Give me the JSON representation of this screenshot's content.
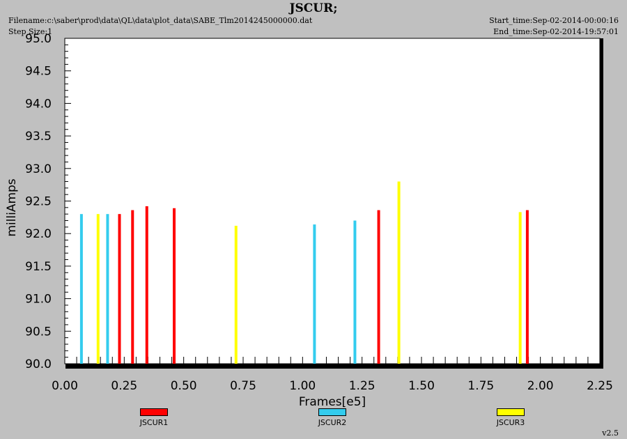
{
  "header": {
    "title": "JSCUR;",
    "filename": "Filename:c:\\saber\\prod\\data\\QL\\data\\plot_data\\SABE_Tlm2014245000000.dat",
    "step_size": "Step Size:1",
    "start_time": "Start_time:Sep-02-2014-00:00:16",
    "end_time": "End_time:Sep-02-2014-19:57:01"
  },
  "footer": {
    "version": "v2.5"
  },
  "chart_data": {
    "type": "bar",
    "title": "JSCUR;",
    "xlabel": "Frames[e5]",
    "ylabel": "milliAmps",
    "xlim": [
      0,
      2.25
    ],
    "ylim": [
      90.0,
      95.0
    ],
    "xticks": [
      "0.00",
      "0.25",
      "0.50",
      "0.75",
      "1.00",
      "1.25",
      "1.50",
      "1.75",
      "2.00",
      "2.25"
    ],
    "yticks": [
      "90.0",
      "90.5",
      "91.0",
      "91.5",
      "92.0",
      "92.5",
      "93.0",
      "93.5",
      "94.0",
      "94.5",
      "95.0"
    ],
    "grid": false,
    "legend_position": "bottom",
    "series": [
      {
        "name": "JSCUR1",
        "color": "#ff0000",
        "points": [
          {
            "x": 0.23,
            "y": 92.3
          },
          {
            "x": 0.285,
            "y": 92.36
          },
          {
            "x": 0.345,
            "y": 92.42
          },
          {
            "x": 0.46,
            "y": 92.39
          },
          {
            "x": 1.32,
            "y": 92.36
          },
          {
            "x": 1.945,
            "y": 92.36
          }
        ]
      },
      {
        "name": "JSCUR2",
        "color": "#33ccee",
        "points": [
          {
            "x": 0.07,
            "y": 92.3
          },
          {
            "x": 0.18,
            "y": 92.3
          },
          {
            "x": 1.05,
            "y": 92.14
          },
          {
            "x": 1.22,
            "y": 92.2
          }
        ]
      },
      {
        "name": "JSCUR3",
        "color": "#ffff00",
        "points": [
          {
            "x": 0.14,
            "y": 92.3
          },
          {
            "x": 0.72,
            "y": 92.12
          },
          {
            "x": 1.405,
            "y": 92.8
          },
          {
            "x": 1.915,
            "y": 92.33
          }
        ]
      }
    ]
  }
}
